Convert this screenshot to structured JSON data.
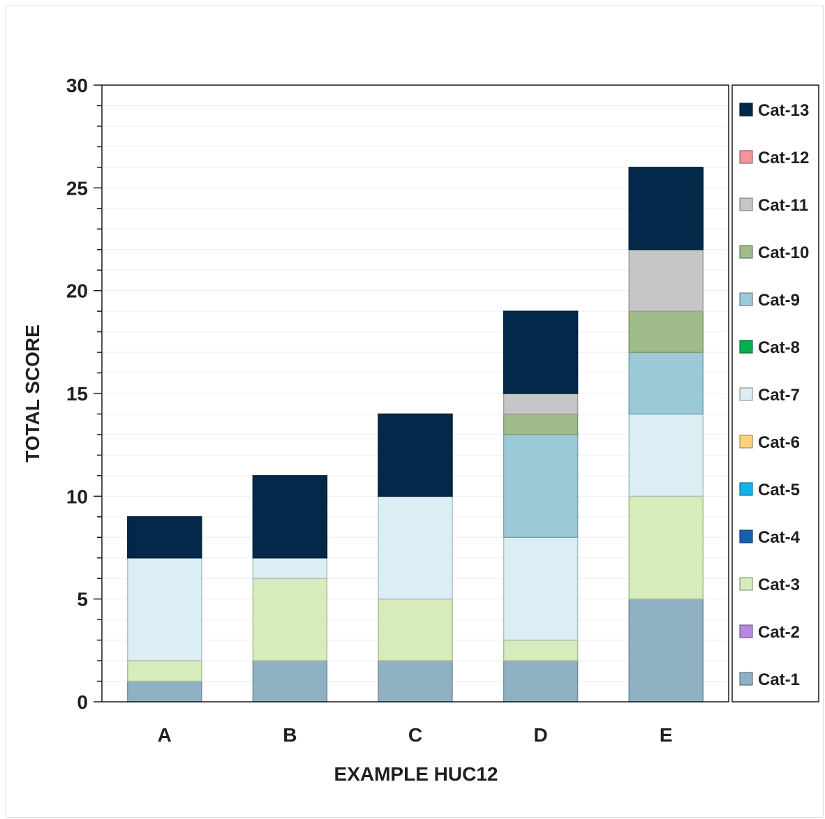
{
  "chart_data": {
    "type": "bar",
    "stacked": true,
    "xlabel": "EXAMPLE HUC12",
    "ylabel": "TOTAL SCORE",
    "ylim": [
      0,
      30
    ],
    "yticks": [
      "0",
      "5",
      "10",
      "15",
      "20",
      "25",
      "30"
    ],
    "categories": [
      "A",
      "B",
      "C",
      "D",
      "E"
    ],
    "grid": true,
    "legend_position": "right",
    "series": [
      {
        "name": "Cat-1",
        "color": "#8fb1c3",
        "values": [
          1,
          2,
          2,
          2,
          5
        ]
      },
      {
        "name": "Cat-2",
        "color": "#b689de",
        "values": [
          0,
          0,
          0,
          0,
          0
        ]
      },
      {
        "name": "Cat-3",
        "color": "#d6ecba",
        "values": [
          1,
          4,
          3,
          1,
          5
        ]
      },
      {
        "name": "Cat-4",
        "color": "#1660b0",
        "values": [
          0,
          0,
          0,
          0,
          0
        ]
      },
      {
        "name": "Cat-5",
        "color": "#12b2ea",
        "values": [
          0,
          0,
          0,
          0,
          0
        ]
      },
      {
        "name": "Cat-6",
        "color": "#fdd37a",
        "values": [
          0,
          0,
          0,
          0,
          0
        ]
      },
      {
        "name": "Cat-7",
        "color": "#daeef3",
        "values": [
          5,
          1,
          5,
          5,
          4
        ]
      },
      {
        "name": "Cat-8",
        "color": "#00b050",
        "values": [
          0,
          0,
          0,
          0,
          0
        ]
      },
      {
        "name": "Cat-9",
        "color": "#9cc9d8",
        "values": [
          0,
          0,
          0,
          5,
          3
        ]
      },
      {
        "name": "Cat-10",
        "color": "#9fbc8a",
        "values": [
          0,
          0,
          0,
          1,
          2
        ]
      },
      {
        "name": "Cat-11",
        "color": "#c6c6c6",
        "values": [
          0,
          0,
          0,
          1,
          3
        ]
      },
      {
        "name": "Cat-12",
        "color": "#f4949c",
        "values": [
          0,
          0,
          0,
          0,
          0
        ]
      },
      {
        "name": "Cat-13",
        "color": "#03284a",
        "values": [
          2,
          4,
          4,
          4,
          4
        ]
      }
    ]
  }
}
